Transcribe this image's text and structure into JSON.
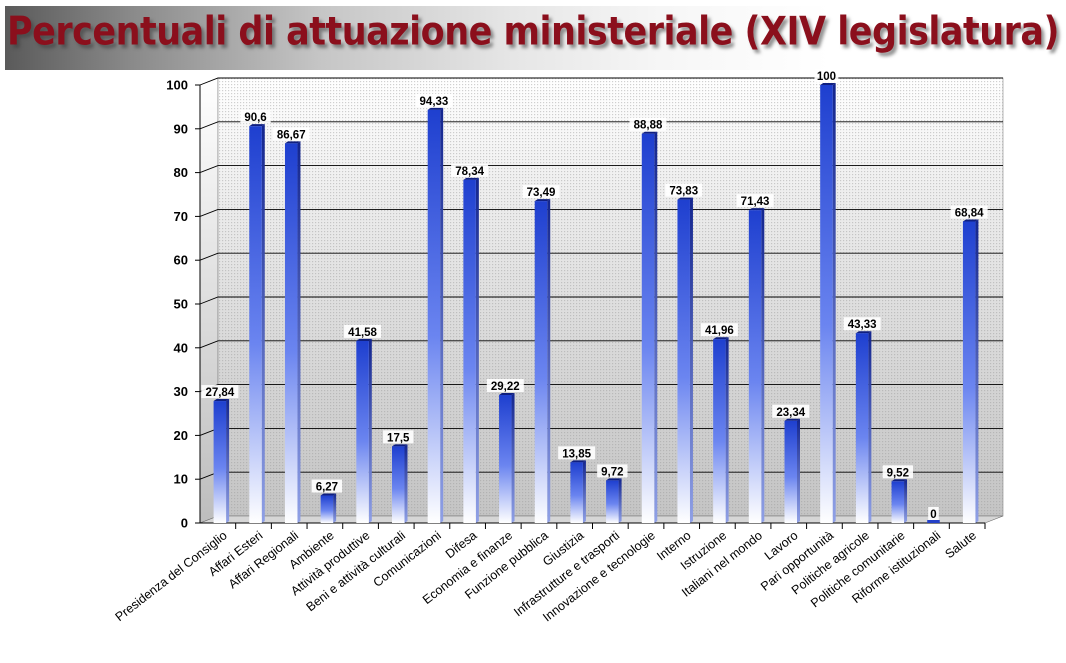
{
  "title": "Percentuali di attuazione ministeriale (XIV legislatura)",
  "colors": {
    "bar_top": "#1e3fcf",
    "bar_bottom": "#ffffff",
    "bar_side": "#16289a",
    "title": "#8b0f1c"
  },
  "chart_data": {
    "type": "bar",
    "title": "Percentuali di attuazione ministeriale (XIV legislatura)",
    "xlabel": "",
    "ylabel": "",
    "ylim": [
      0,
      100
    ],
    "yticks": [
      0,
      10,
      20,
      30,
      40,
      50,
      60,
      70,
      80,
      90,
      100
    ],
    "grid": true,
    "categories": [
      "Presidenza del Consiglio",
      "Affari Esteri",
      "Affari Regionali",
      "Ambiente",
      "Attività produttive",
      "Beni e attività culturali",
      "Comunicazioni",
      "Difesa",
      "Economia e finanze",
      "Funzione pubblica",
      "Giustizia",
      "Infrastrutture e trasporti",
      "Innovazione e tecnologie",
      "Interno",
      "Istruzione",
      "Italiani nel mondo",
      "Lavoro",
      "Pari opportunità",
      "Politiche agricole",
      "Politiche comunitarie",
      "Riforme istituzionali",
      "Salute"
    ],
    "values": [
      27.84,
      90.6,
      86.67,
      6.27,
      41.58,
      17.5,
      94.33,
      78.34,
      29.22,
      73.49,
      13.85,
      9.72,
      88.88,
      73.83,
      41.96,
      71.43,
      23.34,
      100,
      43.33,
      9.52,
      0,
      68.84
    ],
    "data_labels": [
      "27,84",
      "90,6",
      "86,67",
      "6,27",
      "41,58",
      "17,5",
      "94,33",
      "78,34",
      "29,22",
      "73,49",
      "13,85",
      "9,72",
      "88,88",
      "73,83",
      "41,96",
      "71,43",
      "23,34",
      "100",
      "43,33",
      "9,52",
      "0",
      "68,84"
    ]
  }
}
